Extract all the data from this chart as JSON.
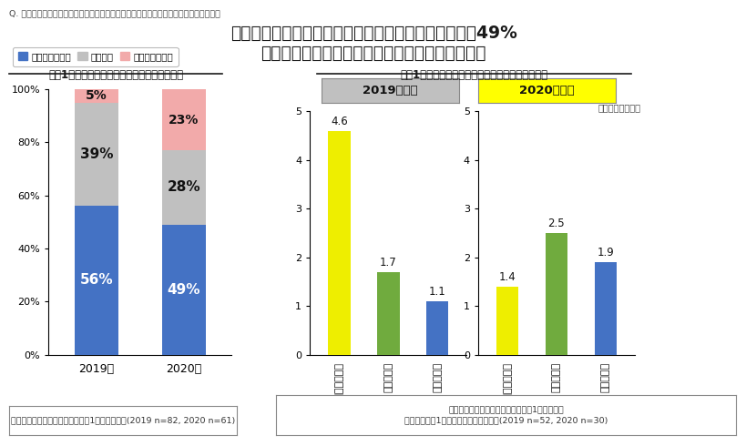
{
  "title_line1": "この１年でデータサイエンティストを増やした企業は49%",
  "title_line2": "内訳として、中途採用・新卒採用が昨年より増加",
  "question": "Q. データサイエンティスト人材の増減と、増やした人数の増員方法をお答えください。",
  "left_subtitle": "直近1年間でのデータサイエンティストの増減",
  "right_subtitle": "直近1年間で増えたデータサイエンティストの内訳",
  "legend_labels": [
    "１人以上増えた",
    "増減なし",
    "１人以上減った"
  ],
  "bar_categories": [
    "2019年",
    "2020年"
  ],
  "bar_data": {
    "increased": [
      56,
      49
    ],
    "neutral": [
      39,
      28
    ],
    "decreased": [
      5,
      23
    ]
  },
  "bar_colors": {
    "increased": "#4472C4",
    "neutral": "#C0C0C0",
    "decreased": "#F2AAAA"
  },
  "survey2019": {
    "title": "2019年調査",
    "title_bg": "#C0C0C0",
    "values": [
      4.6,
      1.7,
      1.1
    ],
    "bar_colors": [
      "#EEEE00",
      "#70AB3E",
      "#4472C4"
    ],
    "categories": [
      "社内の異動・育成",
      "中途採用者",
      "新卒採用者"
    ]
  },
  "survey2020": {
    "title": "2020年調査",
    "title_bg": "#FFFF00",
    "values": [
      1.4,
      2.5,
      1.9
    ],
    "bar_colors": [
      "#EEEE00",
      "#70AB3E",
      "#4472C4"
    ],
    "categories": [
      "社内の異動・育成",
      "中途採用者",
      "新卒採用者"
    ]
  },
  "footnote_left": "データサイエンティスト在籍者が1人以上の企業(2019 n=82, 2020 n=61)",
  "footnote_right_l1": "データサイエンティストの在籍者が1人以上で、",
  "footnote_right_l2": "直近１年間で1人以上増員があった企業(2019 n=52, 2020 n=30)",
  "avg_label": "（平均人数：人）",
  "background_color": "#FFFFFF"
}
